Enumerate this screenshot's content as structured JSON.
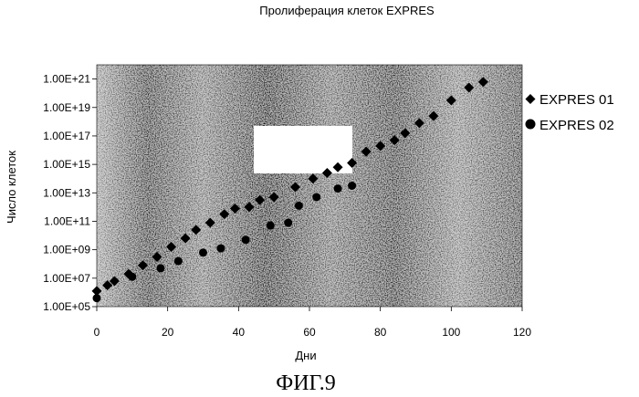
{
  "chart_data": {
    "type": "scatter",
    "title": "Пролиферация клеток EXPRES",
    "xlabel": "Дни",
    "ylabel": "Число клеток",
    "xlim": [
      0,
      120
    ],
    "ylim_exponent": [
      5,
      22
    ],
    "y_scale": "log",
    "x_ticks": [
      "0",
      "20",
      "40",
      "60",
      "80",
      "100",
      "120"
    ],
    "y_ticks": [
      "1.00E+05",
      "1.00E+07",
      "1.00E+09",
      "1.00E+11",
      "1.00E+13",
      "1.00E+15",
      "1.00E+17",
      "1.00E+19",
      "1.00E+21"
    ],
    "legend_position": "right",
    "series": [
      {
        "name": "EXPRES 01",
        "marker": "diamond",
        "color": "#000000",
        "points": [
          {
            "x": 0,
            "y_exp": 6.1
          },
          {
            "x": 3,
            "y_exp": 6.5
          },
          {
            "x": 5,
            "y_exp": 6.8
          },
          {
            "x": 9,
            "y_exp": 7.3
          },
          {
            "x": 13,
            "y_exp": 7.9
          },
          {
            "x": 17,
            "y_exp": 8.5
          },
          {
            "x": 21,
            "y_exp": 9.2
          },
          {
            "x": 25,
            "y_exp": 9.8
          },
          {
            "x": 28,
            "y_exp": 10.4
          },
          {
            "x": 32,
            "y_exp": 10.9
          },
          {
            "x": 36,
            "y_exp": 11.5
          },
          {
            "x": 39,
            "y_exp": 11.9
          },
          {
            "x": 43,
            "y_exp": 12.0
          },
          {
            "x": 46,
            "y_exp": 12.5
          },
          {
            "x": 50,
            "y_exp": 12.7
          },
          {
            "x": 56,
            "y_exp": 13.4
          },
          {
            "x": 61,
            "y_exp": 14.0
          },
          {
            "x": 65,
            "y_exp": 14.4
          },
          {
            "x": 68,
            "y_exp": 14.8
          },
          {
            "x": 72,
            "y_exp": 15.1
          },
          {
            "x": 76,
            "y_exp": 15.9
          },
          {
            "x": 80,
            "y_exp": 16.3
          },
          {
            "x": 84,
            "y_exp": 16.7
          },
          {
            "x": 87,
            "y_exp": 17.2
          },
          {
            "x": 91,
            "y_exp": 17.9
          },
          {
            "x": 95,
            "y_exp": 18.4
          },
          {
            "x": 100,
            "y_exp": 19.5
          },
          {
            "x": 105,
            "y_exp": 20.4
          },
          {
            "x": 109,
            "y_exp": 20.8
          }
        ]
      },
      {
        "name": "EXPRES 02",
        "marker": "circle",
        "color": "#000000",
        "points": [
          {
            "x": 0,
            "y_exp": 5.6
          },
          {
            "x": 10,
            "y_exp": 7.1
          },
          {
            "x": 18,
            "y_exp": 7.7
          },
          {
            "x": 23,
            "y_exp": 8.2
          },
          {
            "x": 30,
            "y_exp": 8.8
          },
          {
            "x": 35,
            "y_exp": 9.1
          },
          {
            "x": 42,
            "y_exp": 9.7
          },
          {
            "x": 49,
            "y_exp": 10.7
          },
          {
            "x": 54,
            "y_exp": 10.9
          },
          {
            "x": 57,
            "y_exp": 12.1
          },
          {
            "x": 62,
            "y_exp": 12.7
          },
          {
            "x": 68,
            "y_exp": 13.3
          },
          {
            "x": 72,
            "y_exp": 13.5
          }
        ]
      }
    ],
    "caption": "ФИГ.9"
  }
}
